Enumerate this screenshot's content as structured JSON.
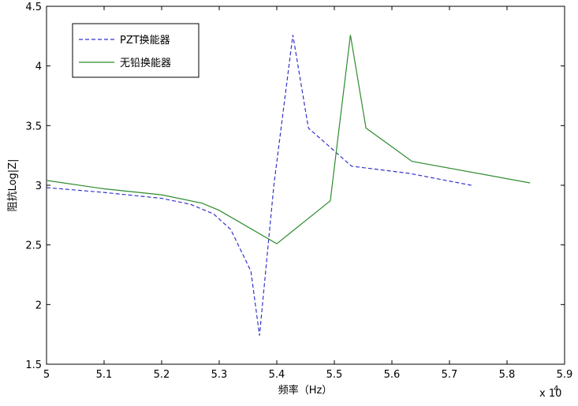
{
  "chart_data": {
    "type": "line",
    "xlabel": "频率（Hz）",
    "ylabel": "阻抗Log|Z|",
    "x_exponent_label": "x 10",
    "x_exponent_power": "4",
    "xlim": [
      5.0,
      5.9
    ],
    "ylim": [
      1.5,
      4.5
    ],
    "xticks": [
      "5",
      "5.1",
      "5.2",
      "5.3",
      "5.4",
      "5.5",
      "5.6",
      "5.7",
      "5.8",
      "5.9"
    ],
    "yticks": [
      "1.5",
      "2",
      "2.5",
      "3",
      "3.5",
      "4",
      "4.5"
    ],
    "grid": false,
    "legend_position": "top-left",
    "series": [
      {
        "name": "PZT换能器",
        "color": "#3333cc",
        "style": "dashed",
        "x": [
          5.0,
          5.1,
          5.2,
          5.25,
          5.29,
          5.32,
          5.355,
          5.37,
          5.395,
          5.428,
          5.455,
          5.53,
          5.63,
          5.738
        ],
        "y": [
          2.98,
          2.94,
          2.89,
          2.84,
          2.76,
          2.63,
          2.28,
          1.74,
          3.0,
          4.26,
          3.48,
          3.16,
          3.1,
          3.0
        ]
      },
      {
        "name": "无铅换能器",
        "color": "#2e8b2e",
        "style": "solid",
        "x": [
          5.0,
          5.1,
          5.2,
          5.27,
          5.3,
          5.4,
          5.493,
          5.528,
          5.555,
          5.635,
          5.84
        ],
        "y": [
          3.04,
          2.97,
          2.92,
          2.85,
          2.79,
          2.51,
          2.87,
          4.26,
          3.48,
          3.2,
          3.02
        ]
      }
    ]
  }
}
